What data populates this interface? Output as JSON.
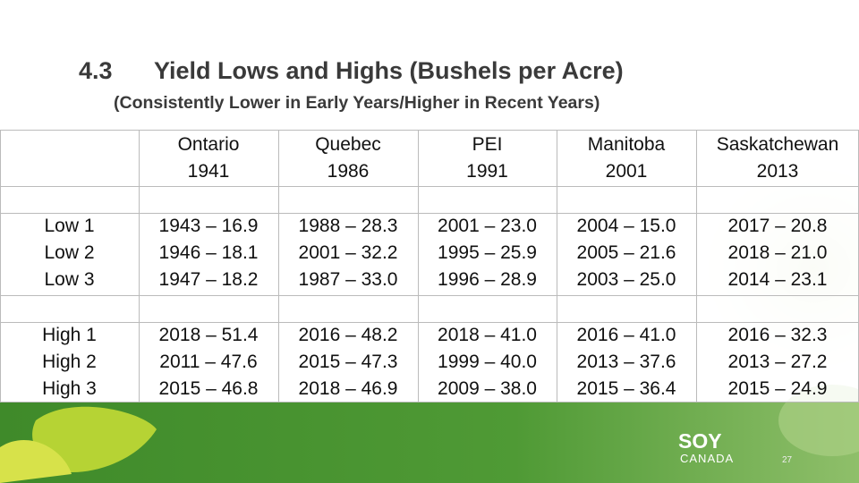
{
  "header": {
    "number": "4.3",
    "title": "Yield Lows and Highs (Bushels per Acre)",
    "subtitle": "(Consistently Lower in Early Years/Higher in Recent Years)"
  },
  "table": {
    "columns": [
      {
        "name": "Ontario",
        "year": "1941"
      },
      {
        "name": "Quebec",
        "year": "1986"
      },
      {
        "name": "PEI",
        "year": "1991"
      },
      {
        "name": "Manitoba",
        "year": "2001"
      },
      {
        "name": "Saskatchewan",
        "year": "2013"
      }
    ],
    "groups": [
      {
        "labels": [
          "Low 1",
          "Low 2",
          "Low 3"
        ],
        "cells": [
          [
            "1943 – 16.9",
            "1946 – 18.1",
            "1947 – 18.2"
          ],
          [
            "1988 – 28.3",
            "2001 – 32.2",
            "1987 – 33.0"
          ],
          [
            "2001 – 23.0",
            "1995 – 25.9",
            "1996 – 28.9"
          ],
          [
            "2004 – 15.0",
            "2005 – 21.6",
            "2003 – 25.0"
          ],
          [
            "2017 – 20.8",
            "2018 – 21.0",
            "2014 – 23.1"
          ]
        ]
      },
      {
        "labels": [
          "High 1",
          "High 2",
          "High 3"
        ],
        "cells": [
          [
            "2018 – 51.4",
            "2011 – 47.6",
            "2015 – 46.8"
          ],
          [
            "2016 – 48.2",
            "2015 – 47.3",
            "2018 – 46.9"
          ],
          [
            "2018 – 41.0",
            "1999 – 40.0",
            "2009 – 38.0"
          ],
          [
            "2016 – 41.0",
            "2013 – 37.6",
            "2015 – 36.4"
          ],
          [
            "2016 – 32.3",
            "2013 – 27.2",
            "2015 – 24.9"
          ]
        ]
      }
    ]
  },
  "footer": {
    "logo_top": "SOY",
    "logo_bottom": "CANADA",
    "page_number": "27"
  }
}
